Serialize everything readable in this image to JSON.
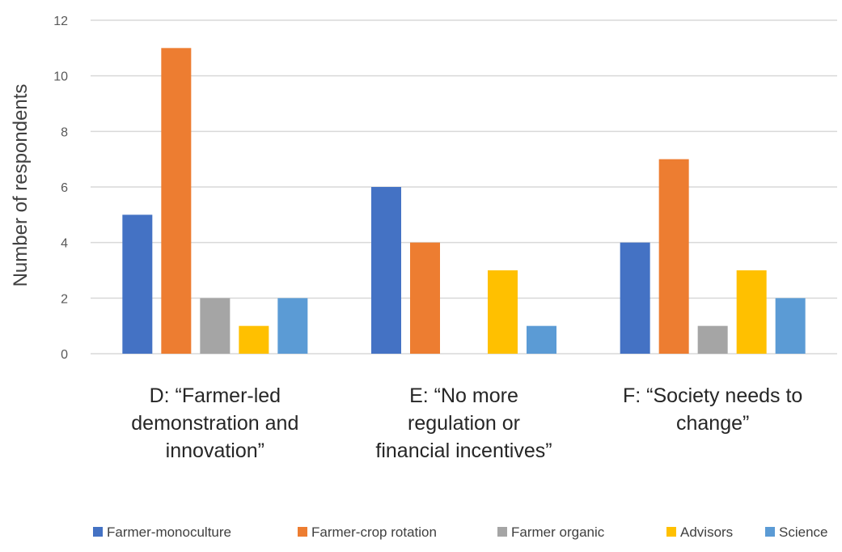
{
  "chart_data": {
    "type": "bar",
    "title": "",
    "xlabel": "",
    "ylabel": "Number of respondents",
    "ylim": [
      0,
      12
    ],
    "yticks": [
      0,
      2,
      4,
      6,
      8,
      10,
      12
    ],
    "grid": true,
    "legend_position": "bottom",
    "categories": [
      [
        "D: “Farmer-led",
        "demonstration and",
        "innovation”"
      ],
      [
        "E: “No more",
        "regulation or",
        "financial incentives”"
      ],
      [
        "F: “Society needs to",
        "change”"
      ]
    ],
    "series": [
      {
        "name": "Farmer-monoculture",
        "color": "#4472c4",
        "values": [
          5,
          6,
          4
        ]
      },
      {
        "name": "Farmer-crop rotation",
        "color": "#ed7d31",
        "values": [
          11,
          4,
          7
        ]
      },
      {
        "name": "Farmer organic",
        "color": "#a5a5a5",
        "values": [
          2,
          0,
          1
        ]
      },
      {
        "name": "Advisors",
        "color": "#ffc000",
        "values": [
          1,
          3,
          3
        ]
      },
      {
        "name": "Science",
        "color": "#5b9bd5",
        "values": [
          2,
          1,
          2
        ]
      }
    ]
  }
}
